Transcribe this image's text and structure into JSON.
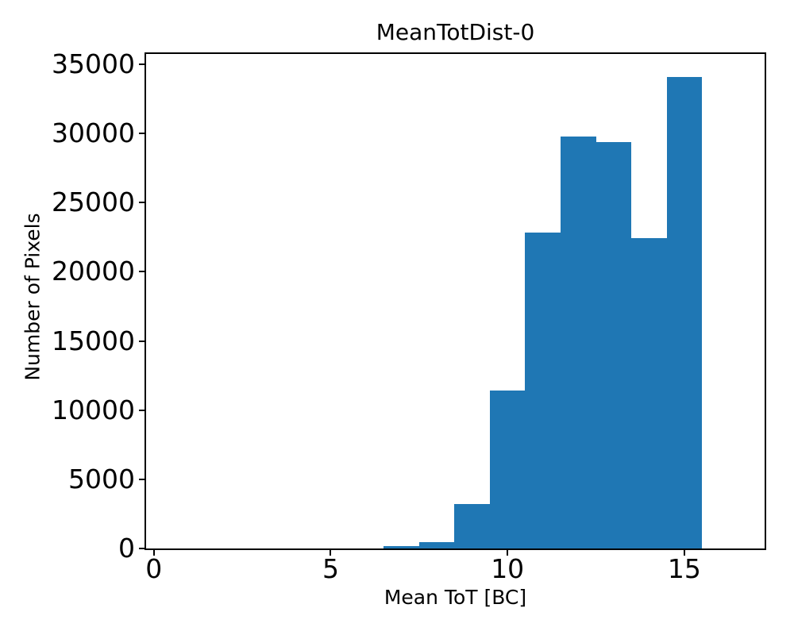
{
  "figure": {
    "title": "MeanTotDist-0",
    "xlabel": "Mean ToT [BC]",
    "ylabel": "Number of Pixels",
    "background_color": "#ffffff",
    "text_color": "#000000"
  },
  "chart_data": {
    "type": "bar",
    "subtype": "histogram",
    "title": "MeanTotDist-0",
    "xlabel": "Mean ToT [BC]",
    "ylabel": "Number of Pixels",
    "bar_color": "#1f77b4",
    "bin_edges": [
      6.5,
      7.5,
      8.5,
      9.5,
      10.5,
      11.5,
      12.5,
      13.5,
      14.5,
      15.5
    ],
    "counts": [
      180,
      450,
      3200,
      11400,
      22850,
      29800,
      29400,
      22450,
      34100
    ],
    "xticks": [
      0,
      5,
      10,
      15
    ],
    "yticks": [
      0,
      5000,
      10000,
      15000,
      20000,
      25000,
      30000,
      35000
    ],
    "xlim": [
      -0.22,
      17.27
    ],
    "ylim": [
      0,
      35750
    ],
    "grid": false,
    "legend": null
  }
}
